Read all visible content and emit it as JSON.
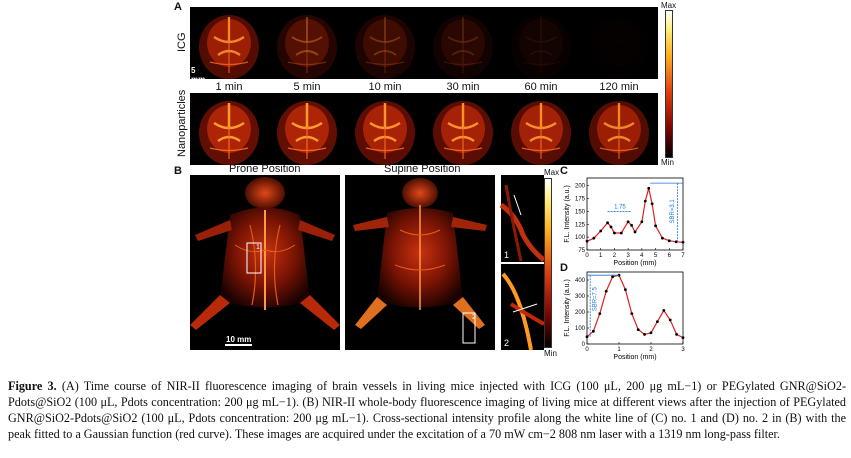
{
  "panelA": {
    "letter": "A",
    "row1_label": "ICG",
    "row2_label": "Nanoparticles",
    "times": [
      "1 min",
      "5 min",
      "10 min",
      "30 min",
      "60 min",
      "120 min"
    ],
    "icg_brightness": [
      0.85,
      0.38,
      0.28,
      0.18,
      0.08,
      0.02
    ],
    "np_brightness": [
      1.0,
      1.0,
      0.95,
      0.93,
      0.9,
      0.85
    ],
    "scalebar": "5 mm",
    "colorbar_max": "Max",
    "colorbar_min": "Min"
  },
  "panelB": {
    "letter": "B",
    "prone_label": "Prone Position",
    "supine_label": "Supine Position",
    "scalebar": "10 mm",
    "box1_label": "1",
    "box2_label": "2",
    "inset1_label": "1",
    "inset2_label": "2",
    "colorbar_max": "Max",
    "colorbar_min": "Min"
  },
  "panelC": {
    "letter": "C",
    "chart_data": {
      "type": "line",
      "xlabel": "Position (mm)",
      "ylabel": "F.L. Intensity (a.u.)",
      "xlim": [
        0,
        7
      ],
      "ylim": [
        75,
        215
      ],
      "xticks": [
        "0",
        "1",
        "2",
        "3",
        "4",
        "5",
        "6",
        "7"
      ],
      "yticks": [
        "75",
        "100",
        "125",
        "150",
        "175",
        "200"
      ],
      "x": [
        0.0,
        0.5,
        1.0,
        1.5,
        1.75,
        2.0,
        2.5,
        3.0,
        3.25,
        3.5,
        4.0,
        4.25,
        4.5,
        4.75,
        5.0,
        5.5,
        6.0,
        6.5,
        7.0
      ],
      "y": [
        92,
        98,
        112,
        128,
        120,
        108,
        108,
        130,
        123,
        110,
        130,
        170,
        195,
        165,
        122,
        98,
        93,
        91,
        90
      ],
      "annotation_spacing": "1.75",
      "annotation_sbr": "SBR=3.1"
    }
  },
  "panelD": {
    "letter": "D",
    "chart_data": {
      "type": "line",
      "xlabel": "Position (mm)",
      "ylabel": "F.L. Intensity (a.u.)",
      "xlim": [
        0,
        3
      ],
      "ylim": [
        0,
        450
      ],
      "xticks": [
        "0",
        "1",
        "2",
        "3"
      ],
      "yticks": [
        "0",
        "100",
        "200",
        "300",
        "400"
      ],
      "x": [
        0.0,
        0.2,
        0.4,
        0.6,
        0.8,
        1.0,
        1.2,
        1.4,
        1.6,
        1.8,
        2.0,
        2.2,
        2.4,
        2.6,
        2.8,
        3.0
      ],
      "y": [
        45,
        80,
        190,
        330,
        420,
        430,
        340,
        190,
        90,
        60,
        70,
        140,
        210,
        150,
        60,
        40
      ],
      "annotation_sbr": "SBR=7.5"
    }
  },
  "caption": {
    "figure_label": "Figure 3.",
    "text": "(A) Time course of NIR-II fluorescence imaging of brain vessels in living mice injected with ICG (100 μL, 200 μg mL−1) or PEGylated GNR@SiO2-Pdots@SiO2 (100 μL, Pdots concentration: 200 μg mL−1). (B) NIR-II whole-body fluorescence imaging of living mice at different views after the injection of PEGylated GNR@SiO2-Pdots@SiO2 (100 μL, Pdots concentration: 200 μg mL−1). Cross-sectional intensity profile along the white line of (C) no. 1 and (D) no. 2 in (B) with the peak fitted to a Gaussian function (red curve). These images are acquired under the excitation of a 70 mW cm−2 808 nm laser with a 1319 nm long-pass filter."
  },
  "colors": {
    "hot_red": "#d42a0a",
    "hot_orange": "#ff8a1a",
    "hot_yellow": "#ffe060",
    "fit_red": "#e02020",
    "annotation_blue": "#1f74d6"
  }
}
